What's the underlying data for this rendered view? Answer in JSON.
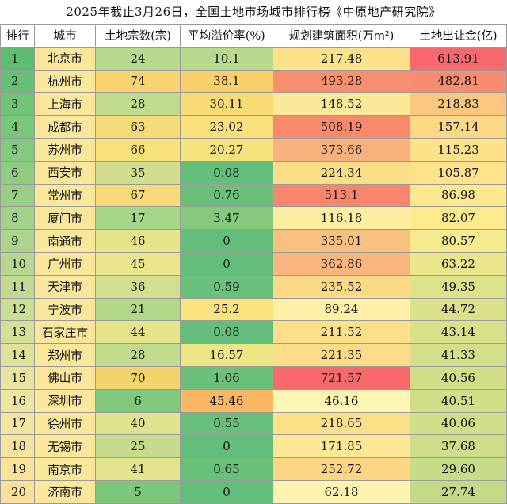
{
  "title": "2025年截止3月26日，全国土地市场城市排行榜《中原地产研究院》",
  "headers": [
    "排行",
    "城市",
    "土地宗数(宗)",
    "平均溢价率(%)",
    "规划建筑面积(万m²)",
    "土地出让金(亿)"
  ],
  "rows": [
    {
      "rank": "1",
      "city": "北京市",
      "count": "24",
      "premium": "10.1",
      "area": "217.48",
      "revenue": "613.91"
    },
    {
      "rank": "2",
      "city": "杭州市",
      "count": "74",
      "premium": "38.1",
      "area": "493.28",
      "revenue": "482.81"
    },
    {
      "rank": "3",
      "city": "上海市",
      "count": "28",
      "premium": "30.11",
      "area": "148.52",
      "revenue": "218.83"
    },
    {
      "rank": "4",
      "city": "成都市",
      "count": "63",
      "premium": "23.02",
      "area": "508.19",
      "revenue": "157.14"
    },
    {
      "rank": "5",
      "city": "苏州市",
      "count": "66",
      "premium": "20.27",
      "area": "373.66",
      "revenue": "115.23"
    },
    {
      "rank": "6",
      "city": "西安市",
      "count": "35",
      "premium": "0.08",
      "area": "224.34",
      "revenue": "105.87"
    },
    {
      "rank": "7",
      "city": "常州市",
      "count": "67",
      "premium": "0.76",
      "area": "513.1",
      "revenue": "86.98"
    },
    {
      "rank": "8",
      "city": "厦门市",
      "count": "17",
      "premium": "3.47",
      "area": "116.18",
      "revenue": "82.07"
    },
    {
      "rank": "9",
      "city": "南通市",
      "count": "46",
      "premium": "0",
      "area": "335.01",
      "revenue": "80.57"
    },
    {
      "rank": "10",
      "city": "广州市",
      "count": "45",
      "premium": "0",
      "area": "362.86",
      "revenue": "63.22"
    },
    {
      "rank": "11",
      "city": "天津市",
      "count": "36",
      "premium": "0.59",
      "area": "235.52",
      "revenue": "49.35"
    },
    {
      "rank": "12",
      "city": "宁波市",
      "count": "21",
      "premium": "25.2",
      "area": "89.24",
      "revenue": "44.72"
    },
    {
      "rank": "13",
      "city": "石家庄市",
      "count": "44",
      "premium": "0.08",
      "area": "211.52",
      "revenue": "43.14"
    },
    {
      "rank": "14",
      "city": "郑州市",
      "count": "28",
      "premium": "16.57",
      "area": "221.35",
      "revenue": "41.33"
    },
    {
      "rank": "15",
      "city": "佛山市",
      "count": "70",
      "premium": "1.06",
      "area": "721.57",
      "revenue": "40.56"
    },
    {
      "rank": "16",
      "city": "深圳市",
      "count": "6",
      "premium": "45.46",
      "area": "46.16",
      "revenue": "40.51"
    },
    {
      "rank": "17",
      "city": "徐州市",
      "count": "40",
      "premium": "0.55",
      "area": "218.65",
      "revenue": "40.06"
    },
    {
      "rank": "18",
      "city": "无锡市",
      "count": "25",
      "premium": "0",
      "area": "171.85",
      "revenue": "37.68"
    },
    {
      "rank": "19",
      "city": "南京市",
      "count": "41",
      "premium": "0.65",
      "area": "252.72",
      "revenue": "29.60"
    },
    {
      "rank": "20",
      "city": "济南市",
      "count": "5",
      "premium": "0",
      "area": "62.18",
      "revenue": "27.74"
    }
  ],
  "colors": {
    "rank": [
      "#5bbd6f",
      "#66c073",
      "#70c377",
      "#7ac67b",
      "#84c97e",
      "#8ecc82",
      "#98ce85",
      "#a2d189",
      "#acd48c",
      "#b6d78f",
      "#c0da92",
      "#cadd95",
      "#d4df98",
      "#dee29b",
      "#e8e59e",
      "#eee6a0",
      "#f3e6a0",
      "#f6e49e",
      "#f8e29c",
      "#fae09a"
    ],
    "city": "#fae79b",
    "count": [
      "#b7d98c",
      "#f7d46f",
      "#c0db8d",
      "#f6da77",
      "#f8e07b",
      "#d0de8e",
      "#f5da77",
      "#a5d586",
      "#e7e48a",
      "#e9e58a",
      "#d3df8f",
      "#b2d88a",
      "#e5e48a",
      "#c0db8d",
      "#f4d36c",
      "#7ec97c",
      "#dfe28e",
      "#c5dc8d",
      "#e2e38c",
      "#7cc77b"
    ],
    "premium": [
      "#b7d98c",
      "#fbcf6a",
      "#f9db75",
      "#fbe07c",
      "#f8e27e",
      "#63be7b",
      "#6ac07b",
      "#85c97c",
      "#63be7b",
      "#63be7b",
      "#68c07b",
      "#fbe47f",
      "#63be7b",
      "#eee685",
      "#6bc17b",
      "#fcb765",
      "#67bf7b",
      "#63be7b",
      "#69c07b",
      "#63be7b"
    ],
    "area": [
      "#fce28b",
      "#f8906f",
      "#fbe99a",
      "#f8896c",
      "#f9b27d",
      "#fcde88",
      "#f8866c",
      "#fdeea2",
      "#fac07f",
      "#fab67e",
      "#fcd986",
      "#fff0a8",
      "#fde18a",
      "#fcdc88",
      "#f8696b",
      "#fff6b3",
      "#fde088",
      "#fde896",
      "#fcd585",
      "#fff4af"
    ],
    "revenue": [
      "#f8696b",
      "#f88c6f",
      "#fcc781",
      "#fed886",
      "#ffe18a",
      "#ffe38b",
      "#fee98e",
      "#fdeb8e",
      "#f5ea8d",
      "#eae68b",
      "#dee28a",
      "#dbe08a",
      "#d9e08a",
      "#d5df8a",
      "#d4de89",
      "#d3de89",
      "#d2de89",
      "#cedd89",
      "#c7db89",
      "#c4da88"
    ]
  }
}
